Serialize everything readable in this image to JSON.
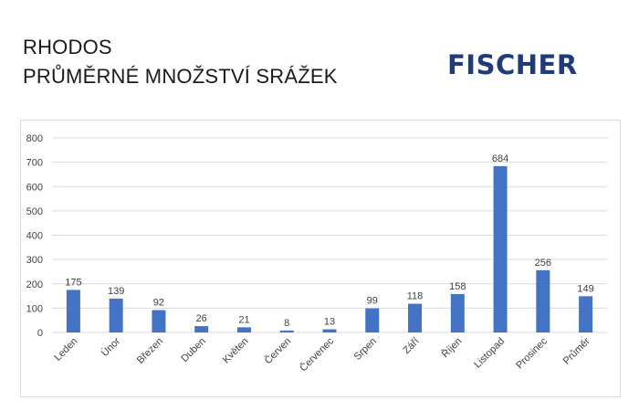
{
  "header": {
    "title_line1": "RHODOS",
    "title_line2": "PRŮMĚRNÉ MNOŽSTVÍ SRÁŽEK",
    "logo_text": "FISCHER"
  },
  "colors": {
    "bar": "#4472C4",
    "grid": "#d9d9d9",
    "logo": "#1f3b78"
  },
  "chart_data": {
    "type": "bar",
    "categories": [
      "Leden",
      "Únor",
      "Březen",
      "Duben",
      "Květen",
      "Červen",
      "Červenec",
      "Srpen",
      "Září",
      "Říjen",
      "Listopad",
      "Prosinec",
      "Průměr"
    ],
    "values": [
      175,
      139,
      92,
      26,
      21,
      8,
      13,
      99,
      118,
      158,
      684,
      256,
      149
    ],
    "ylim": [
      0,
      800
    ],
    "yticks": [
      0,
      100,
      200,
      300,
      400,
      500,
      600,
      700,
      800
    ],
    "grid": true,
    "data_labels": true,
    "legend": "none"
  }
}
